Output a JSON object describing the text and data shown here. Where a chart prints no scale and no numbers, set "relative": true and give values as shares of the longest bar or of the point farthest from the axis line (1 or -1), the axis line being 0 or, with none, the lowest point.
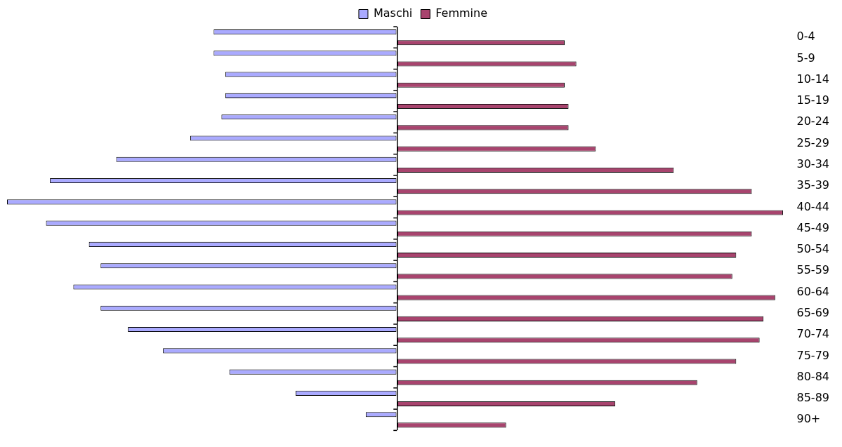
{
  "chart_data": {
    "type": "bar",
    "orientation": "horizontal",
    "relative": true,
    "legend": "top",
    "categories": [
      "0-4",
      "5-9",
      "10-14",
      "15-19",
      "20-24",
      "25-29",
      "30-34",
      "35-39",
      "40-44",
      "45-49",
      "50-54",
      "55-59",
      "60-64",
      "65-69",
      "70-74",
      "75-79",
      "80-84",
      "85-89",
      "90+"
    ],
    "series": [
      {
        "name": "Maschi",
        "color": "#aaaaff",
        "values": [
          -0.47,
          -0.47,
          -0.44,
          -0.44,
          -0.45,
          -0.53,
          -0.72,
          -0.89,
          -1,
          -0.9,
          -0.79,
          -0.76,
          -0.83,
          -0.76,
          -0.69,
          -0.6,
          -0.43,
          -0.26,
          -0.08
        ]
      },
      {
        "name": "Femmine",
        "color": "#a8446e",
        "values": [
          0.43,
          0.46,
          0.43,
          0.44,
          0.44,
          0.51,
          0.71,
          0.91,
          0.99,
          0.91,
          0.87,
          0.86,
          0.97,
          0.94,
          0.93,
          0.87,
          0.77,
          0.56,
          0.28
        ]
      }
    ]
  }
}
